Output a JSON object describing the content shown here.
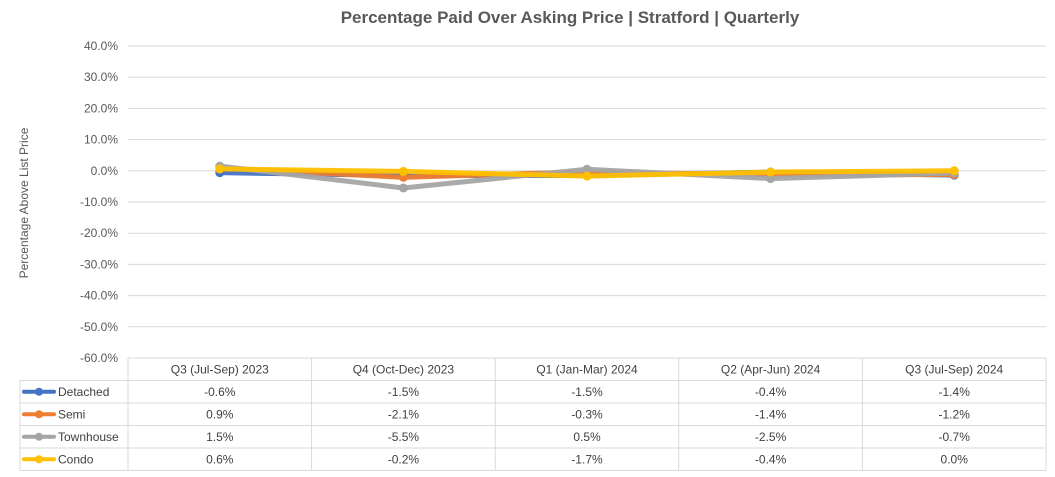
{
  "chart_data": {
    "type": "line",
    "title": "Percentage Paid Over Asking Price | Stratford |  Quarterly",
    "xlabel": "",
    "ylabel": "Percentage Above List Price",
    "ylim": [
      -60,
      40
    ],
    "yticks": [
      "40.0%",
      "30.0%",
      "20.0%",
      "10.0%",
      "0.0%",
      "-10.0%",
      "-20.0%",
      "-30.0%",
      "-40.0%",
      "-50.0%",
      "-60.0%"
    ],
    "categories": [
      "Q3 (Jul-Sep) 2023",
      "Q4 (Oct-Dec) 2023",
      "Q1 (Jan-Mar) 2024",
      "Q2 (Apr-Jun) 2024",
      "Q3 (Jul-Sep) 2024"
    ],
    "series": [
      {
        "name": "Detached",
        "color": "#4472c4",
        "values": [
          -0.6,
          -1.5,
          -1.5,
          -0.4,
          -1.4
        ],
        "labels": [
          "-0.6%",
          "-1.5%",
          "-1.5%",
          "-0.4%",
          "-1.4%"
        ]
      },
      {
        "name": "Semi",
        "color": "#ed7d31",
        "values": [
          0.9,
          -2.1,
          -0.3,
          -1.4,
          -1.2
        ],
        "labels": [
          "0.9%",
          "-2.1%",
          "-0.3%",
          "-1.4%",
          "-1.2%"
        ]
      },
      {
        "name": "Townhouse",
        "color": "#a5a5a5",
        "values": [
          1.5,
          -5.5,
          0.5,
          -2.5,
          -0.7
        ],
        "labels": [
          "1.5%",
          "-5.5%",
          "0.5%",
          "-2.5%",
          "-0.7%"
        ]
      },
      {
        "name": "Condo",
        "color": "#ffc000",
        "values": [
          0.6,
          -0.2,
          -1.7,
          -0.4,
          0.0
        ],
        "labels": [
          "0.6%",
          "-0.2%",
          "-1.7%",
          "-0.4%",
          "0.0%"
        ]
      }
    ],
    "grid": true,
    "legend": "data-table"
  }
}
